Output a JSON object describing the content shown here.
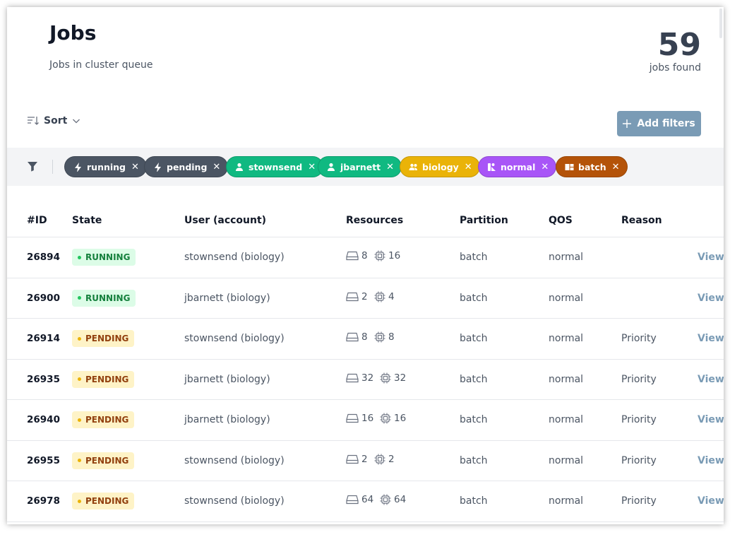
{
  "header": {
    "title": "Jobs",
    "subtitle": "Jobs in cluster queue",
    "count": "59",
    "count_label": "jobs found"
  },
  "toolbar": {
    "sort_label": "Sort",
    "add_filters_label": "Add filters"
  },
  "filters": [
    {
      "label": "running",
      "icon": "bolt-icon",
      "color": "#4b5563"
    },
    {
      "label": "pending",
      "icon": "bolt-icon",
      "color": "#4b5563"
    },
    {
      "label": "stownsend",
      "icon": "user-icon",
      "color": "#10b981"
    },
    {
      "label": "jbarnett",
      "icon": "user-icon",
      "color": "#10b981"
    },
    {
      "label": "biology",
      "icon": "users-icon",
      "color": "#eab308"
    },
    {
      "label": "normal",
      "icon": "qos-icon",
      "color": "#a855f7"
    },
    {
      "label": "batch",
      "icon": "partition-icon",
      "color": "#b45309"
    }
  ],
  "table": {
    "columns": [
      "#ID",
      "State",
      "User (account)",
      "Resources",
      "Partition",
      "QOS",
      "Reason"
    ],
    "rows": [
      {
        "id": "26894",
        "state": "RUNNING",
        "user": "stownsend (biology)",
        "nodes": "8",
        "cpus": "16",
        "partition": "batch",
        "qos": "normal",
        "reason": "",
        "action": "View"
      },
      {
        "id": "26900",
        "state": "RUNNING",
        "user": "jbarnett (biology)",
        "nodes": "2",
        "cpus": "4",
        "partition": "batch",
        "qos": "normal",
        "reason": "",
        "action": "View"
      },
      {
        "id": "26914",
        "state": "PENDING",
        "user": "stownsend (biology)",
        "nodes": "8",
        "cpus": "8",
        "partition": "batch",
        "qos": "normal",
        "reason": "Priority",
        "action": "View"
      },
      {
        "id": "26935",
        "state": "PENDING",
        "user": "jbarnett (biology)",
        "nodes": "32",
        "cpus": "32",
        "partition": "batch",
        "qos": "normal",
        "reason": "Priority",
        "action": "View"
      },
      {
        "id": "26940",
        "state": "PENDING",
        "user": "jbarnett (biology)",
        "nodes": "16",
        "cpus": "16",
        "partition": "batch",
        "qos": "normal",
        "reason": "Priority",
        "action": "View"
      },
      {
        "id": "26955",
        "state": "PENDING",
        "user": "stownsend (biology)",
        "nodes": "2",
        "cpus": "2",
        "partition": "batch",
        "qos": "normal",
        "reason": "Priority",
        "action": "View"
      },
      {
        "id": "26978",
        "state": "PENDING",
        "user": "stownsend (biology)",
        "nodes": "64",
        "cpus": "64",
        "partition": "batch",
        "qos": "normal",
        "reason": "Priority",
        "action": "View"
      }
    ]
  }
}
